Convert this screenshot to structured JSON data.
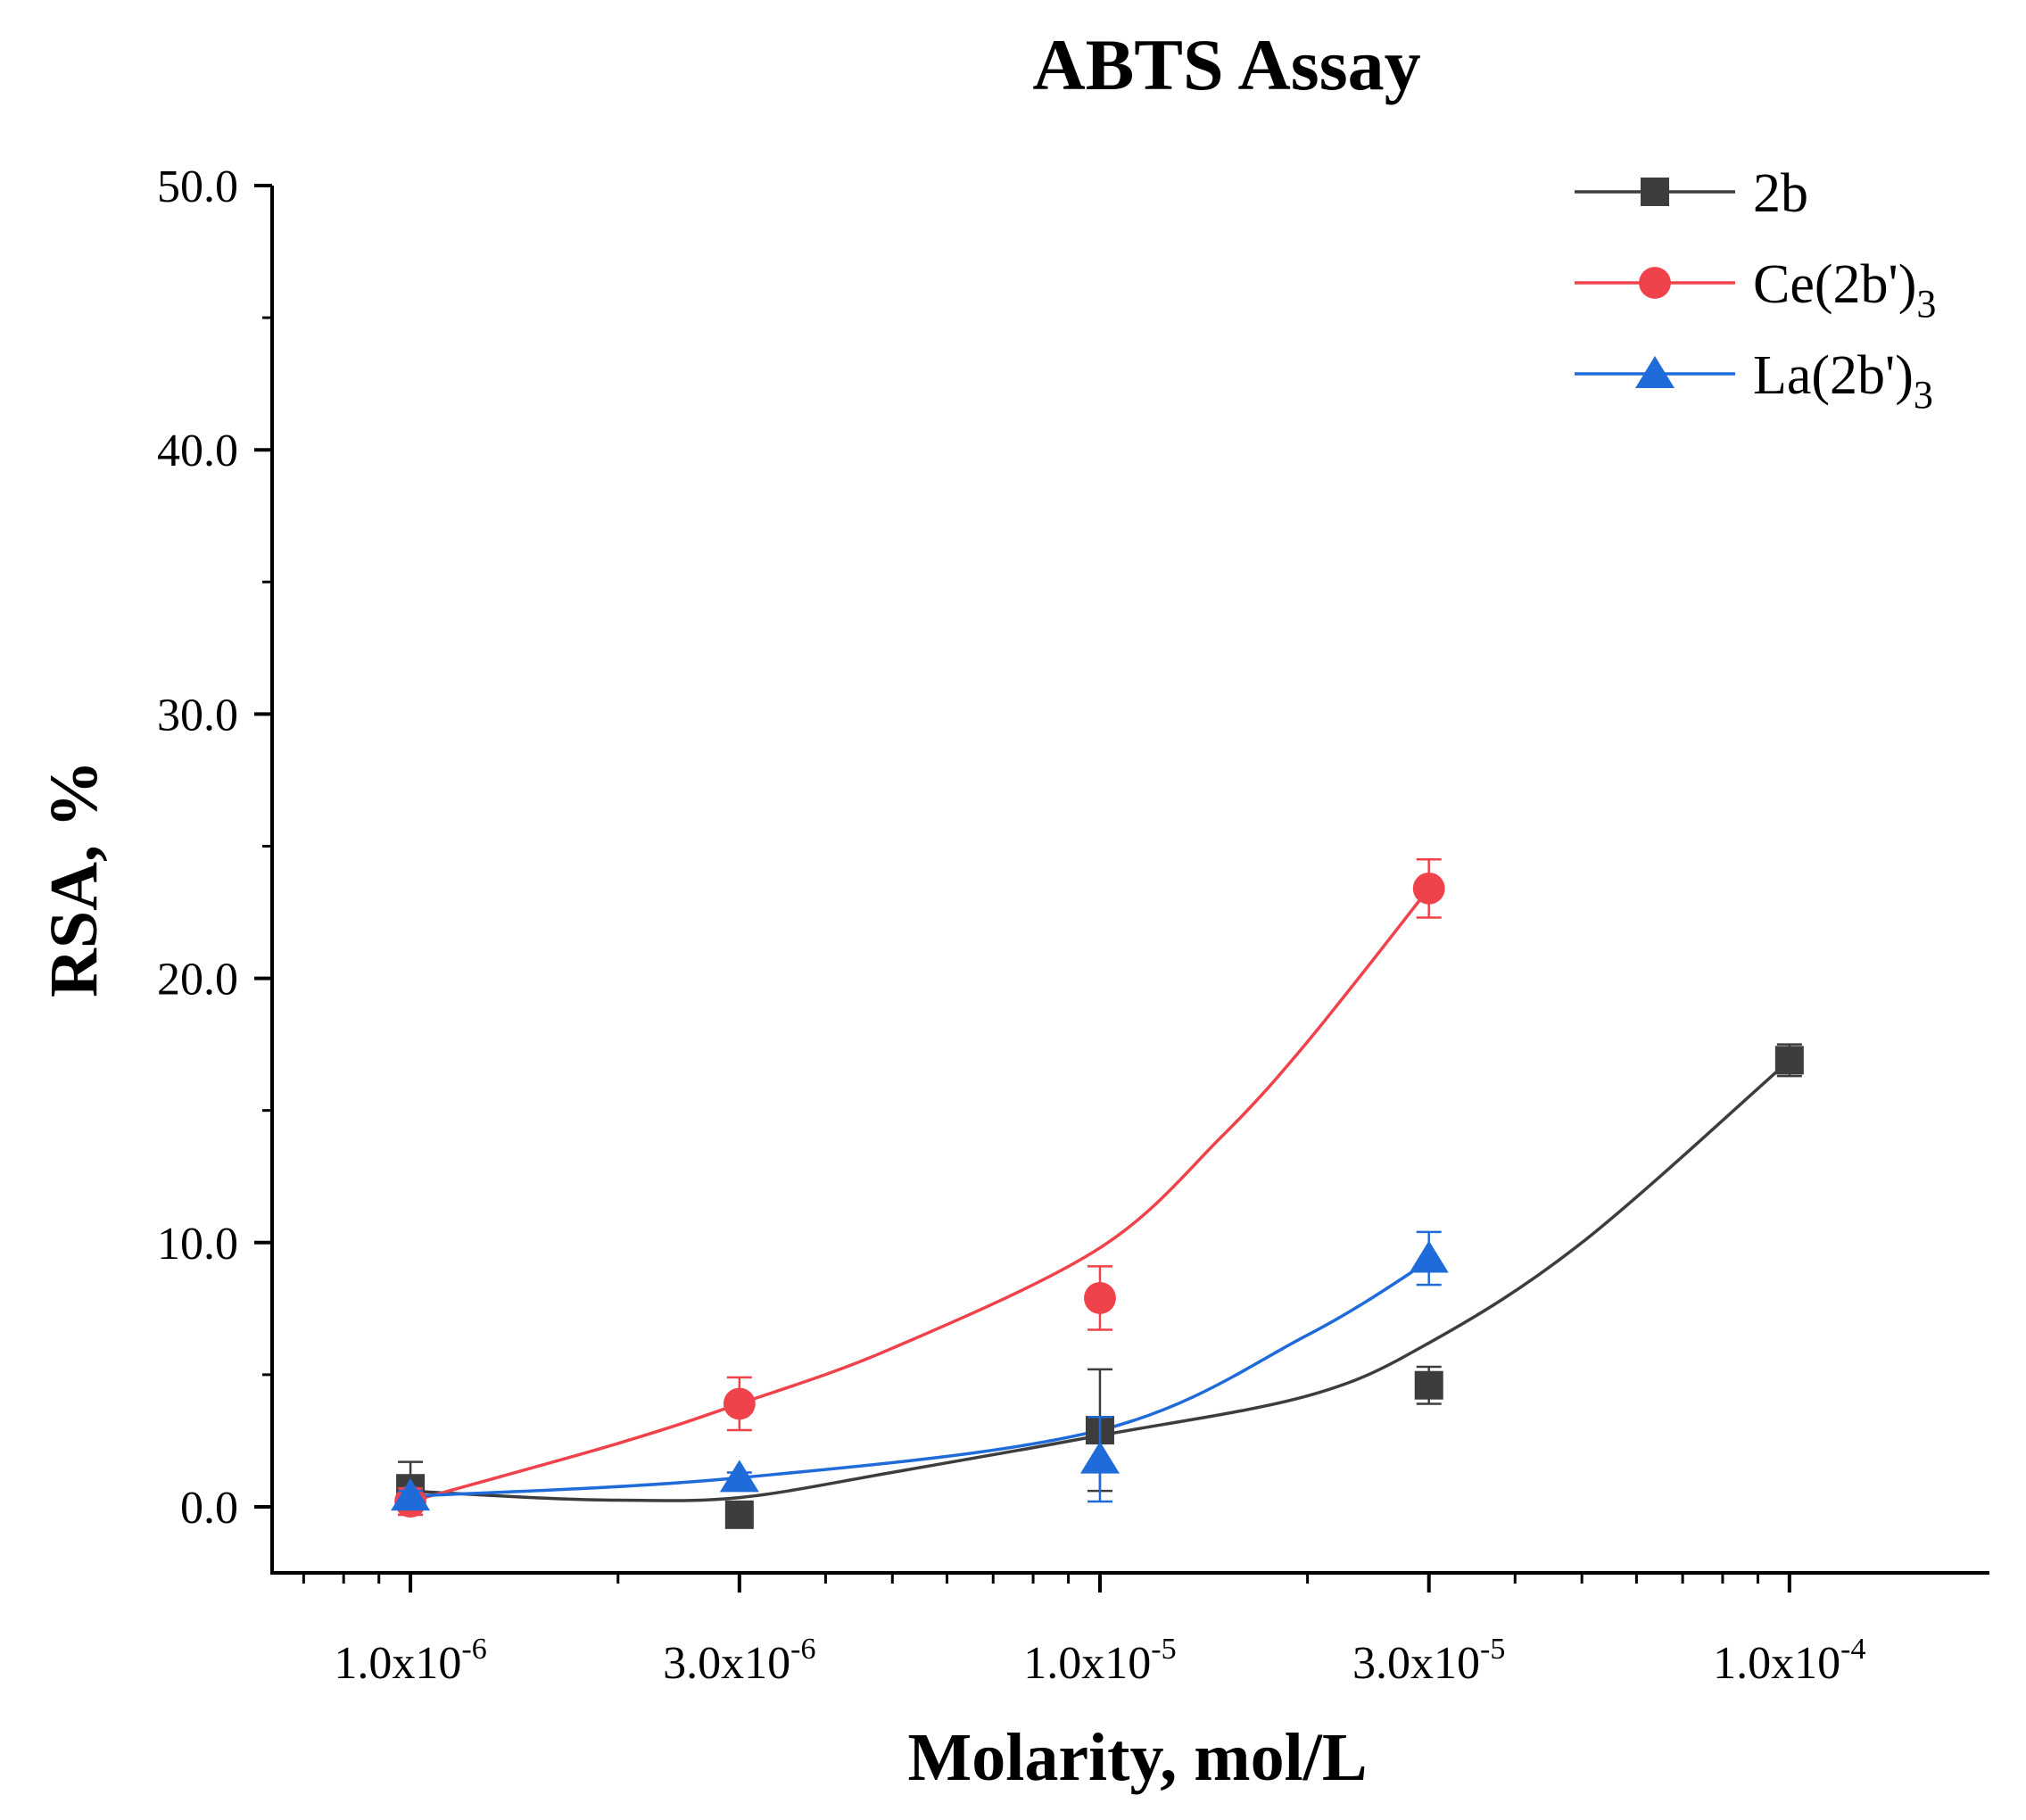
{
  "chart_data": {
    "type": "line",
    "title": "ABTS Assay",
    "xlabel": "Molarity, mol/L",
    "ylabel": "RSA, %",
    "xscale": "log",
    "xlim": [
      6.3e-07,
      0.000195
    ],
    "ylim": [
      -2.5,
      50
    ],
    "grid": false,
    "legend_position": "top-right",
    "x_tick_labels": [
      {
        "value": 1e-06,
        "mantissa": "1.0x10",
        "exp": "-6"
      },
      {
        "value": 3e-06,
        "mantissa": "3.0x10",
        "exp": "-6"
      },
      {
        "value": 1e-05,
        "mantissa": "1.0x10",
        "exp": "-5"
      },
      {
        "value": 3e-05,
        "mantissa": "3.0x10",
        "exp": "-5"
      },
      {
        "value": 0.0001,
        "mantissa": "1.0x10",
        "exp": "-4"
      }
    ],
    "y_ticks": [
      0,
      10,
      20,
      30,
      40,
      50
    ],
    "y_tick_labels": [
      "0.0",
      "10.0",
      "20.0",
      "30.0",
      "40.0",
      "50.0"
    ],
    "y_minor_ticks": [
      5,
      15,
      25,
      35,
      45
    ],
    "series": [
      {
        "name": "2b",
        "name_base": "2b",
        "name_sub": "",
        "color": "#3d3d3d",
        "marker": "square",
        "x": [
          1e-06,
          3e-06,
          1e-05,
          3e-05,
          0.0001
        ],
        "y": [
          0.7,
          -0.3,
          2.9,
          4.6,
          16.9
        ],
        "err": [
          1.0,
          0.3,
          2.3,
          0.7,
          0.6
        ],
        "fit": [
          [
            1e-06,
            0.6
          ],
          [
            1.5e-06,
            0.35
          ],
          [
            2e-06,
            0.25
          ],
          [
            3e-06,
            0.35
          ],
          [
            5e-06,
            1.3
          ],
          [
            1e-05,
            2.7
          ],
          [
            2e-05,
            4.2
          ],
          [
            3e-05,
            6.2
          ],
          [
            5e-05,
            10.0
          ],
          [
            0.0001,
            16.9
          ]
        ]
      },
      {
        "name": "Ce(2b')3",
        "name_base": "Ce(2b')",
        "name_sub": "3",
        "color": "#f0424a",
        "marker": "circle",
        "x": [
          1e-06,
          3e-06,
          1e-05,
          3e-05
        ],
        "y": [
          0.2,
          3.9,
          7.9,
          23.4
        ],
        "err": [
          0.5,
          1.0,
          1.2,
          1.1
        ],
        "fit": [
          [
            1e-06,
            0.2
          ],
          [
            2e-06,
            2.4
          ],
          [
            3e-06,
            3.9
          ],
          [
            5e-06,
            6.0
          ],
          [
            1e-05,
            9.8
          ],
          [
            1.5e-05,
            14.0
          ],
          [
            2e-05,
            17.6
          ],
          [
            3e-05,
            23.4
          ]
        ]
      },
      {
        "name": "La(2b')3",
        "name_base": "La(2b')",
        "name_sub": "3",
        "color": "#1f6bd9",
        "marker": "triangle",
        "x": [
          1e-06,
          3e-06,
          1e-05,
          3e-05
        ],
        "y": [
          0.4,
          1.1,
          1.8,
          9.4
        ],
        "err": [
          0.2,
          0.2,
          1.6,
          1.0
        ],
        "fit": [
          [
            1e-06,
            0.4
          ],
          [
            3e-06,
            1.1
          ],
          [
            1e-05,
            2.9
          ],
          [
            2e-05,
            6.5
          ],
          [
            3e-05,
            9.3
          ]
        ]
      }
    ]
  }
}
